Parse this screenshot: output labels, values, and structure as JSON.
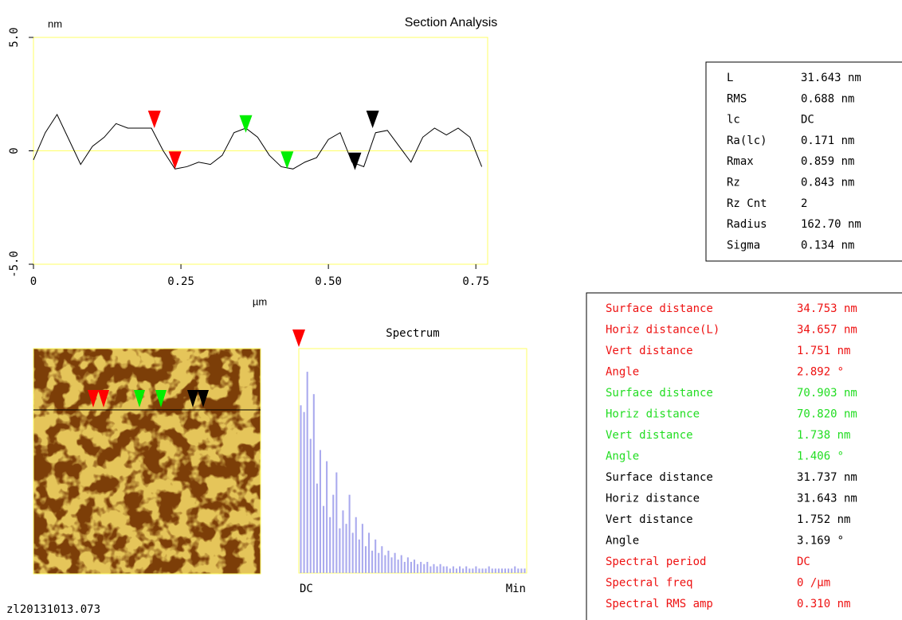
{
  "title": "Section Analysis",
  "profile": {
    "type": "line",
    "y_unit": "nm",
    "x_label": "µm",
    "color": "#000000",
    "frame_color": "#ffff66",
    "xlim": [
      0,
      0.77
    ],
    "ylim": [
      -5,
      5
    ],
    "xticks": [
      0,
      0.25,
      {
        "value": 0.5,
        "label": "0.50"
      },
      0.75
    ],
    "yticks": [
      {
        "value": 5,
        "label": "5.0"
      },
      0,
      {
        "value": -5,
        "label": "-5.0"
      }
    ],
    "x": [
      0,
      0.02,
      0.04,
      0.06,
      0.08,
      0.1,
      0.12,
      0.14,
      0.16,
      0.18,
      0.2,
      0.22,
      0.24,
      0.26,
      0.28,
      0.3,
      0.32,
      0.34,
      0.36,
      0.38,
      0.4,
      0.42,
      0.44,
      0.46,
      0.48,
      0.5,
      0.52,
      0.54,
      0.56,
      0.58,
      0.6,
      0.62,
      0.64,
      0.66,
      0.68,
      0.7,
      0.72,
      0.74,
      0.76
    ],
    "values": [
      -0.4,
      0.8,
      1.6,
      0.5,
      -0.6,
      0.2,
      0.6,
      1.2,
      1.0,
      1.0,
      1.0,
      0.0,
      -0.8,
      -0.7,
      -0.5,
      -0.6,
      -0.2,
      0.8,
      1.0,
      0.6,
      -0.2,
      -0.7,
      -0.8,
      -0.5,
      -0.3,
      0.5,
      0.8,
      -0.5,
      -0.7,
      0.8,
      0.9,
      0.2,
      -0.5,
      0.6,
      1.0,
      0.7,
      1.0,
      0.6,
      -0.7
    ],
    "cursors": [
      {
        "color": "#ff0000",
        "x": 0.205,
        "y": 1.0
      },
      {
        "color": "#ff0000",
        "x": 0.24,
        "y": -0.8
      },
      {
        "color": "#00ee00",
        "x": 0.36,
        "y": 0.8
      },
      {
        "color": "#00ee00",
        "x": 0.43,
        "y": -0.8
      },
      {
        "color": "#000000",
        "x": 0.545,
        "y": -0.85
      },
      {
        "color": "#000000",
        "x": 0.575,
        "y": 1.0
      }
    ]
  },
  "image": {
    "filename": "zl20131013.073"
  },
  "spectrum": {
    "type": "bar",
    "title": "Spectrum",
    "x_labels": [
      "DC",
      "Min"
    ],
    "color": "#aaaaee",
    "frame_color": "#ffff66",
    "ylim": [
      0,
      100
    ],
    "values": [
      75,
      72,
      90,
      60,
      80,
      40,
      55,
      30,
      50,
      25,
      35,
      45,
      20,
      28,
      22,
      35,
      18,
      25,
      15,
      22,
      12,
      18,
      10,
      15,
      9,
      12,
      8,
      10,
      7,
      9,
      6,
      8,
      5,
      7,
      5,
      6,
      4,
      5,
      4,
      5,
      3,
      4,
      3,
      4,
      3,
      3,
      2,
      3,
      2,
      3,
      2,
      3,
      2,
      2,
      3,
      2,
      2,
      2,
      3,
      2,
      2,
      2,
      2,
      2,
      2,
      2,
      3,
      2,
      2,
      2
    ]
  },
  "stats": {
    "rows": [
      [
        "L",
        "31.643 nm"
      ],
      [
        "RMS",
        "0.688 nm"
      ],
      [
        "lc",
        "DC"
      ],
      [
        "Ra(lc)",
        "0.171 nm"
      ],
      [
        "Rmax",
        "0.859 nm"
      ],
      [
        "Rz",
        "0.843 nm"
      ],
      [
        "Rz Cnt",
        "2"
      ],
      [
        "Radius",
        "162.70 nm"
      ],
      [
        "Sigma",
        "0.134 nm"
      ]
    ]
  },
  "measurements": {
    "groups": [
      {
        "color": "#ee1111",
        "rows": [
          [
            "Surface distance",
            "34.753 nm"
          ],
          [
            "Horiz distance(L)",
            "34.657 nm"
          ],
          [
            "Vert distance",
            "1.751 nm"
          ],
          [
            "Angle",
            "2.892 °"
          ]
        ]
      },
      {
        "color": "#22dd22",
        "rows": [
          [
            "Surface distance",
            "70.903 nm"
          ],
          [
            "Horiz distance",
            "70.820 nm"
          ],
          [
            "Vert distance",
            "1.738 nm"
          ],
          [
            "Angle",
            "1.406 °"
          ]
        ]
      },
      {
        "color": "#000000",
        "rows": [
          [
            "Surface distance",
            "31.737 nm"
          ],
          [
            "Horiz distance",
            "31.643 nm"
          ],
          [
            "Vert distance",
            "1.752 nm"
          ],
          [
            "Angle",
            "3.169 °"
          ]
        ]
      },
      {
        "color": "#ee1111",
        "rows": [
          [
            "Spectral period",
            "DC"
          ],
          [
            "Spectral freq",
            "0 /µm"
          ],
          [
            "Spectral RMS amp",
            "0.310 nm"
          ]
        ]
      }
    ]
  }
}
